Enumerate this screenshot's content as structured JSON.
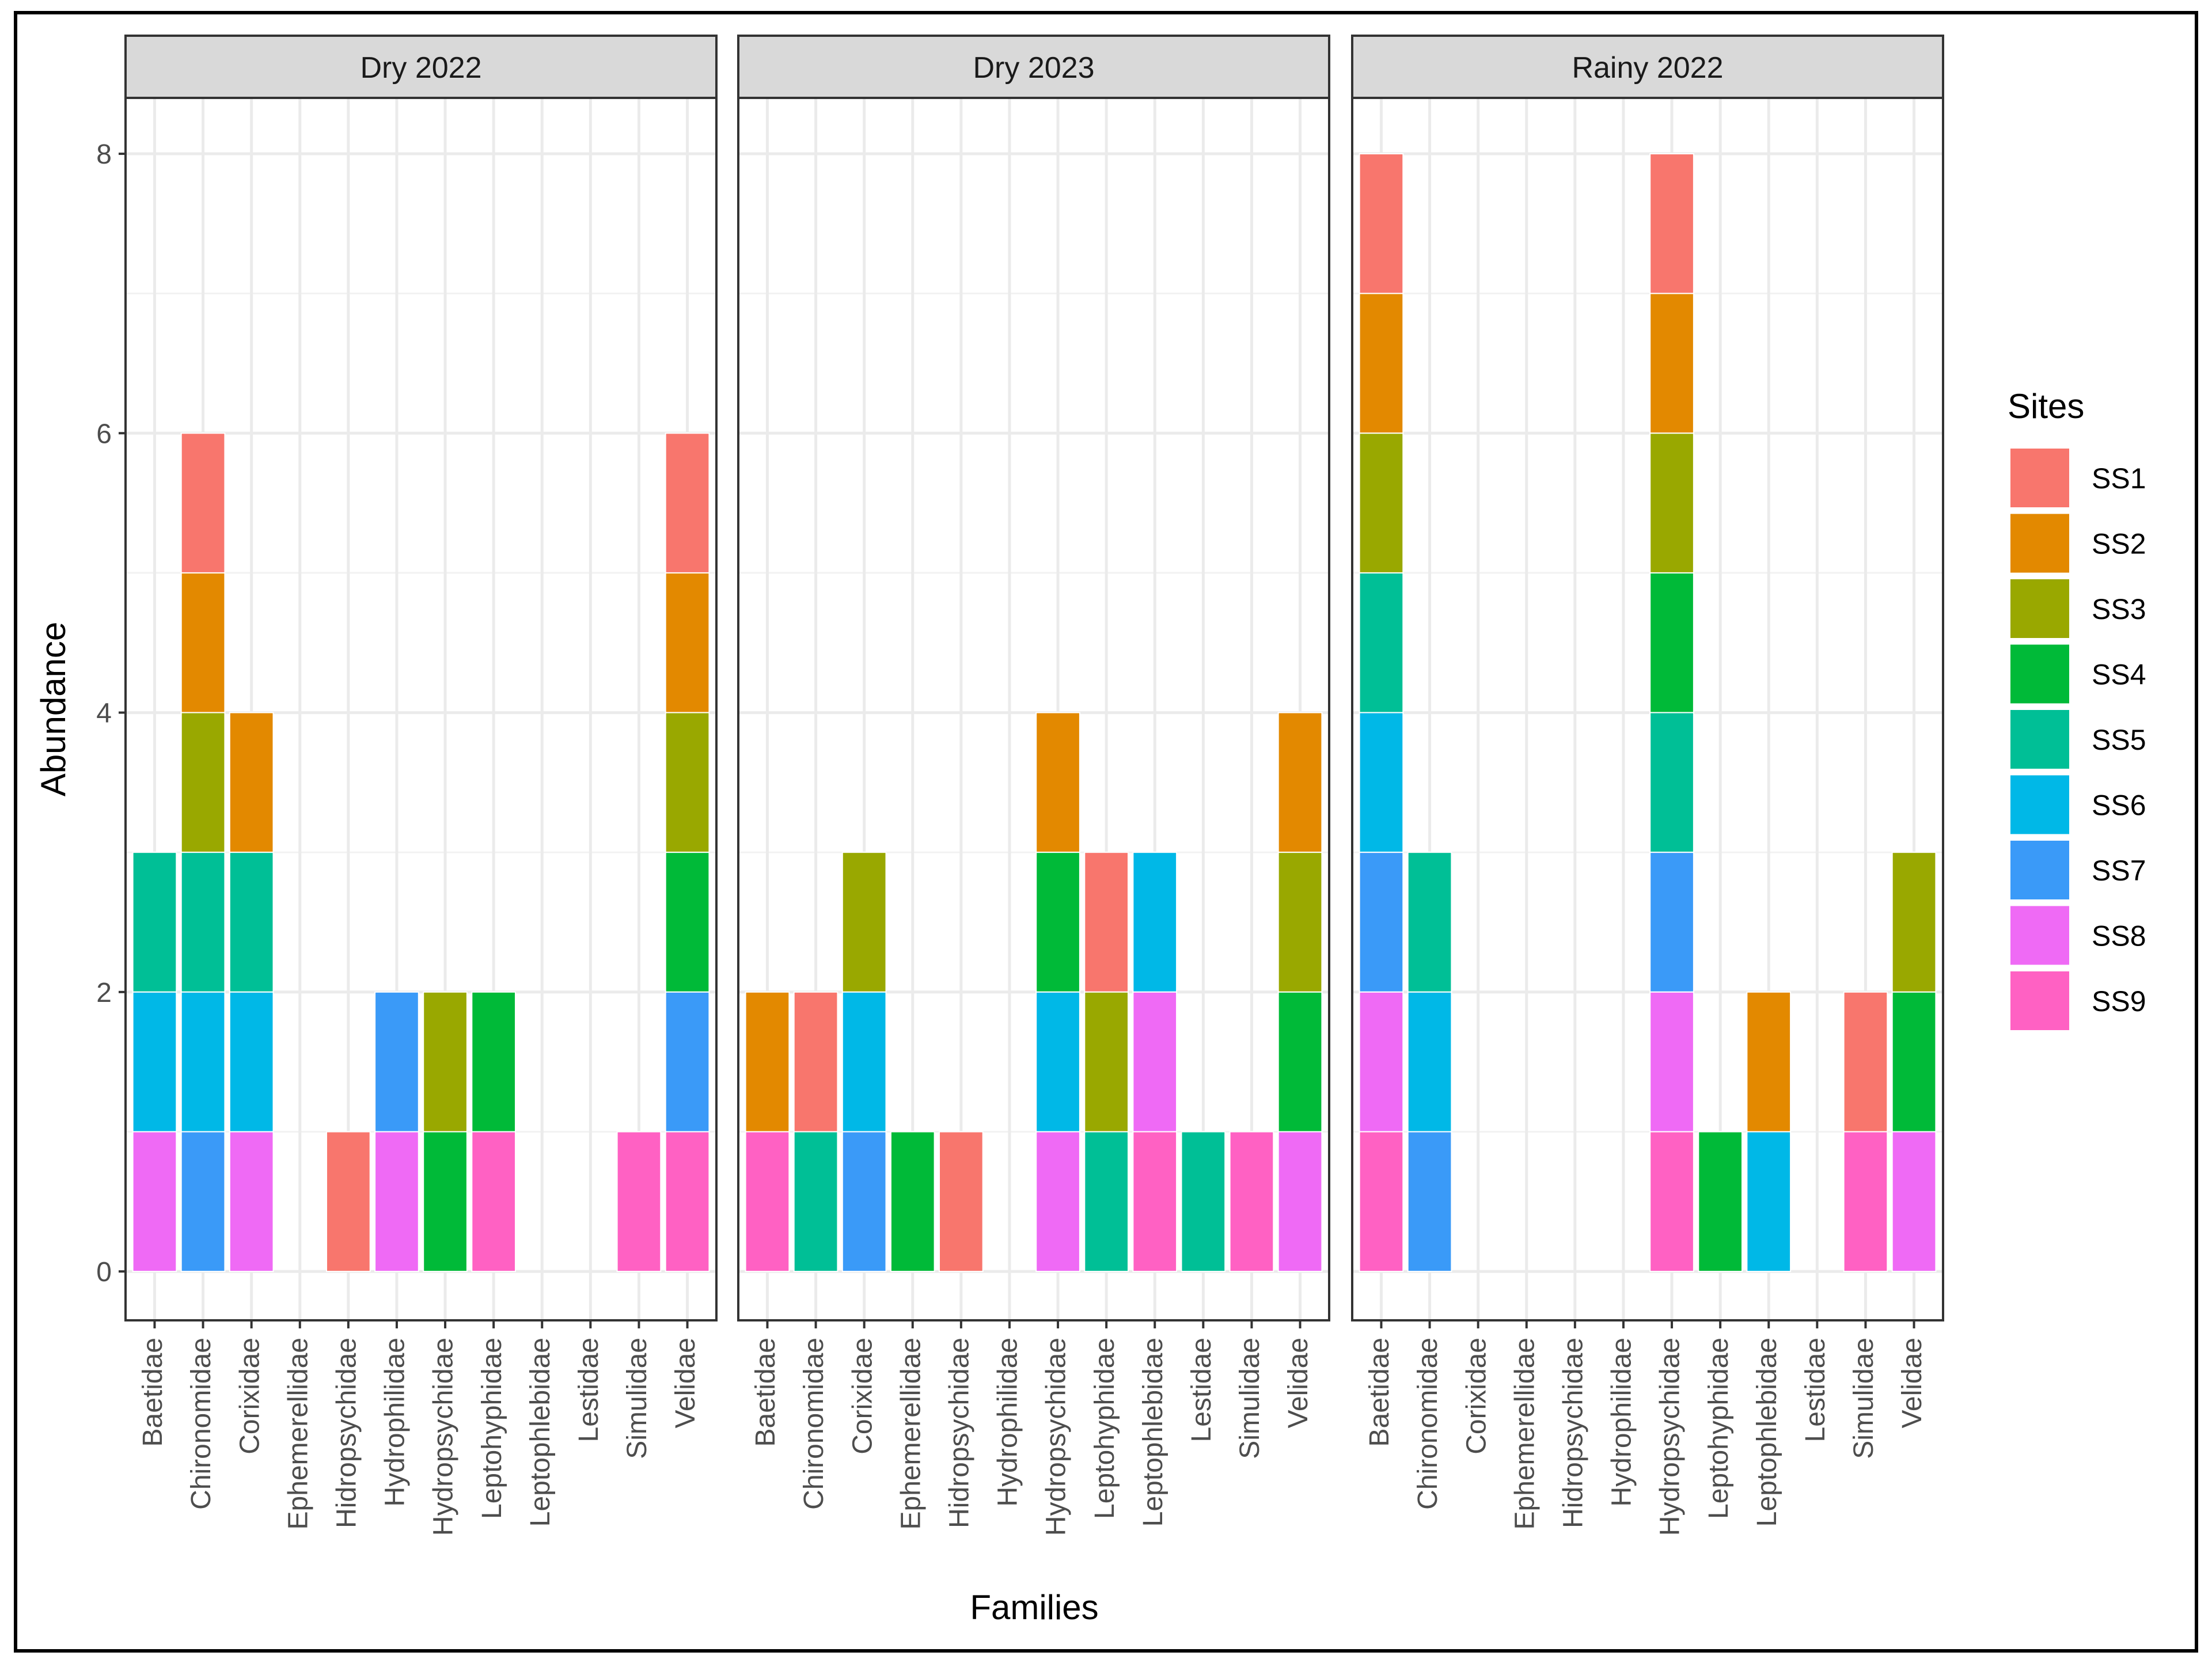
{
  "chart_data": {
    "type": "bar",
    "stacked": true,
    "xlabel": "Families",
    "ylabel": "Abundance",
    "ylim": [
      -0.35,
      8.4
    ],
    "yticks": [
      0,
      2,
      4,
      6,
      8
    ],
    "grid": true,
    "legend": {
      "title": "Sites",
      "position": "right",
      "entries": [
        "SS1",
        "SS2",
        "SS3",
        "SS4",
        "SS5",
        "SS6",
        "SS7",
        "SS8",
        "SS9"
      ]
    },
    "colors": {
      "SS1": "#F8766D",
      "SS2": "#E38900",
      "SS3": "#99A800",
      "SS4": "#00BA38",
      "SS5": "#00BF96",
      "SS6": "#00B8E7",
      "SS7": "#3A9AF8",
      "SS8": "#EF6AF5",
      "SS9": "#FF61C3"
    },
    "categories": [
      "Baetidae",
      "Chironomidae",
      "Corixidae",
      "Ephemerellidae",
      "Hidropsychidae",
      "Hydrophilidae",
      "Hydropsychidae",
      "Leptohyphidae",
      "Leptophlebidae",
      "Lestidae",
      "Simulidae",
      "Velidae"
    ],
    "panels": [
      {
        "title": "Dry 2022",
        "stacks": [
          [
            "SS5",
            "SS6",
            "SS8"
          ],
          [
            "SS1",
            "SS2",
            "SS3",
            "SS5",
            "SS6",
            "SS7"
          ],
          [
            "SS2",
            "SS5",
            "SS6",
            "SS8"
          ],
          [],
          [
            "SS1"
          ],
          [
            "SS7",
            "SS8"
          ],
          [
            "SS3",
            "SS4"
          ],
          [
            "SS4",
            "SS9"
          ],
          [],
          [],
          [
            "SS9"
          ],
          [
            "SS1",
            "SS2",
            "SS3",
            "SS4",
            "SS7",
            "SS9"
          ]
        ]
      },
      {
        "title": "Dry 2023",
        "stacks": [
          [
            "SS2",
            "SS9"
          ],
          [
            "SS1",
            "SS5"
          ],
          [
            "SS3",
            "SS6",
            "SS7"
          ],
          [
            "SS4"
          ],
          [
            "SS1"
          ],
          [],
          [
            "SS2",
            "SS4",
            "SS6",
            "SS8"
          ],
          [
            "SS1",
            "SS3",
            "SS5"
          ],
          [
            "SS6",
            "SS8",
            "SS9"
          ],
          [
            "SS5"
          ],
          [
            "SS9"
          ],
          [
            "SS2",
            "SS3",
            "SS4",
            "SS8"
          ]
        ]
      },
      {
        "title": "Rainy 2022",
        "stacks": [
          [
            "SS1",
            "SS2",
            "SS3",
            "SS5",
            "SS6",
            "SS7",
            "SS8",
            "SS9"
          ],
          [
            "SS5",
            "SS6",
            "SS7"
          ],
          [],
          [],
          [],
          [],
          [
            "SS1",
            "SS2",
            "SS3",
            "SS4",
            "SS5",
            "SS7",
            "SS8",
            "SS9"
          ],
          [
            "SS4"
          ],
          [
            "SS2",
            "SS6"
          ],
          [],
          [
            "SS1",
            "SS9"
          ],
          [
            "SS3",
            "SS4",
            "SS8"
          ]
        ]
      }
    ]
  }
}
